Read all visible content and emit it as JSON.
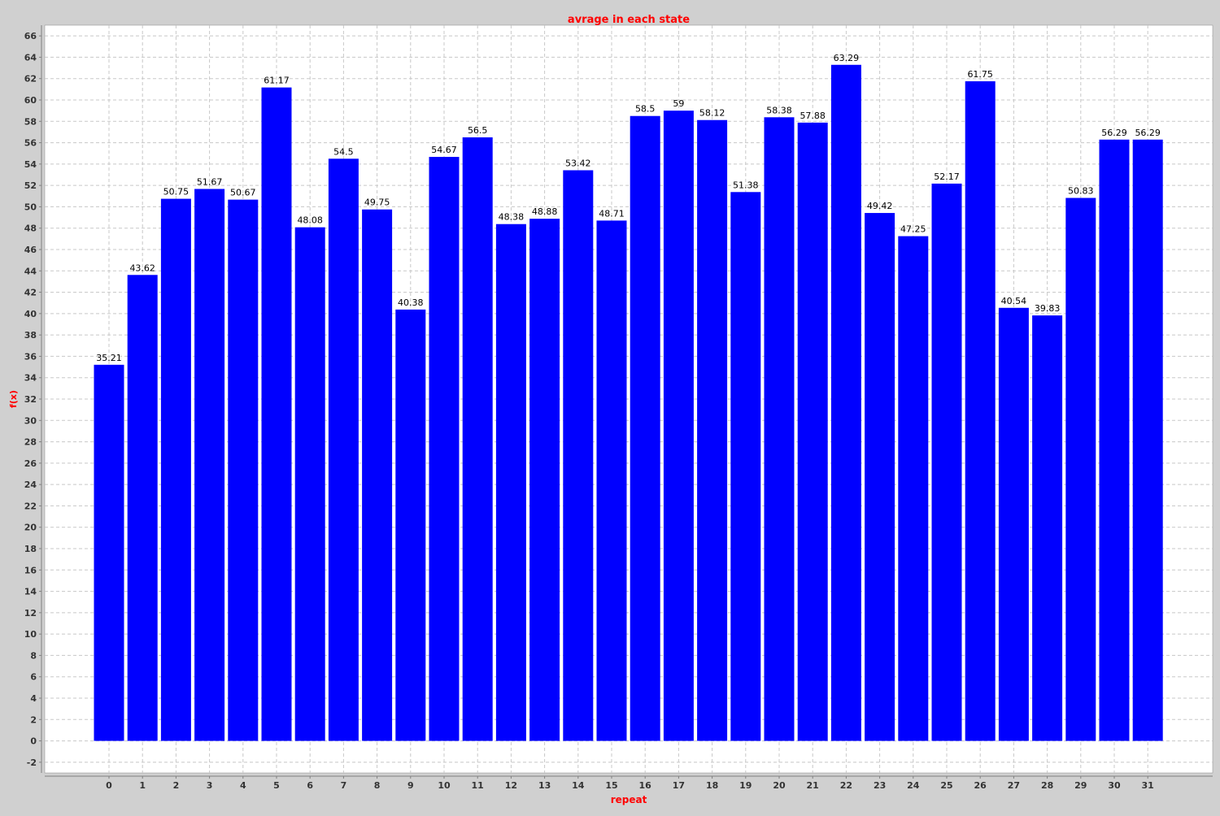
{
  "chart_data": {
    "type": "bar",
    "title": "avrage in each state",
    "xlabel": "repeat",
    "ylabel": "f(x)",
    "categories": [
      "0",
      "1",
      "2",
      "3",
      "4",
      "5",
      "6",
      "7",
      "8",
      "9",
      "10",
      "11",
      "12",
      "13",
      "14",
      "15",
      "16",
      "17",
      "18",
      "19",
      "20",
      "21",
      "22",
      "23",
      "24",
      "25",
      "26",
      "27",
      "28",
      "29",
      "30",
      "31"
    ],
    "values": [
      35.21,
      43.62,
      50.75,
      51.67,
      50.67,
      61.17,
      48.08,
      54.5,
      49.75,
      40.38,
      54.67,
      56.5,
      48.38,
      48.88,
      53.42,
      48.71,
      58.5,
      59,
      58.12,
      51.38,
      58.38,
      57.88,
      63.29,
      49.42,
      47.25,
      52.17,
      61.75,
      40.54,
      39.83,
      50.83,
      56.29,
      56.29
    ],
    "labels": [
      "35.21",
      "43.62",
      "50.75",
      "51.67",
      "50.67",
      "61.17",
      "48.08",
      "54.5",
      "49.75",
      "40.38",
      "54.67",
      "56.5",
      "48.38",
      "48.88",
      "53.42",
      "48.71",
      "58.5",
      "59",
      "58.12",
      "51.38",
      "58.38",
      "57.88",
      "63.29",
      "49.42",
      "47.25",
      "52.17",
      "61.75",
      "40.54",
      "39.83",
      "50.83",
      "56.29",
      "56.29"
    ],
    "ylim": [
      -3,
      67
    ],
    "yticks": [
      -2,
      0,
      2,
      4,
      6,
      8,
      10,
      12,
      14,
      16,
      18,
      20,
      22,
      24,
      26,
      28,
      30,
      32,
      34,
      36,
      38,
      40,
      42,
      44,
      46,
      48,
      50,
      52,
      54,
      56,
      58,
      60,
      62,
      64,
      66
    ],
    "grid": true,
    "legend": "none",
    "colors": {
      "bar": "#0000ff",
      "title": "#ff0000",
      "axis_label": "#ff0000",
      "background": "#ffffff",
      "frame": "#d0d0d0",
      "grid": "#c8c8c8"
    }
  }
}
